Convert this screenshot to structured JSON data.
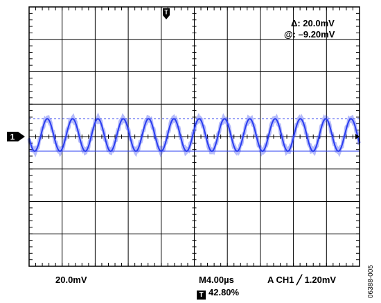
{
  "chart_data": {
    "type": "line",
    "title": "",
    "xlabel": "",
    "ylabel": "",
    "divisions": {
      "x": 10,
      "y": 8
    },
    "grid": true,
    "xlim_div": [
      0,
      10
    ],
    "ylim_div": [
      -4,
      4
    ],
    "series": [
      {
        "channel": "1",
        "color": "#2a3df0",
        "offset_div": 0,
        "period_div": 0.766,
        "phase_div": 0.36,
        "peak_to_peak_div": 1.0,
        "peak_div": 0.55,
        "trough_div": -0.45
      }
    ],
    "cursors": [
      {
        "value_div": 0.55,
        "style": "dashed"
      },
      {
        "value_div": -0.45,
        "style": "solid"
      }
    ],
    "readouts": {
      "delta": "Δ: 20.0mV",
      "at": "@: –9.20mV"
    },
    "ch1_scale": "20.0mV",
    "timebase": "M4.00µs",
    "trigger": "A  CH1  ╱  1.20mV",
    "trigger_position": "42.80%",
    "channel_marker": "1",
    "trigger_marker": "T"
  },
  "figure_id": "06388-005"
}
